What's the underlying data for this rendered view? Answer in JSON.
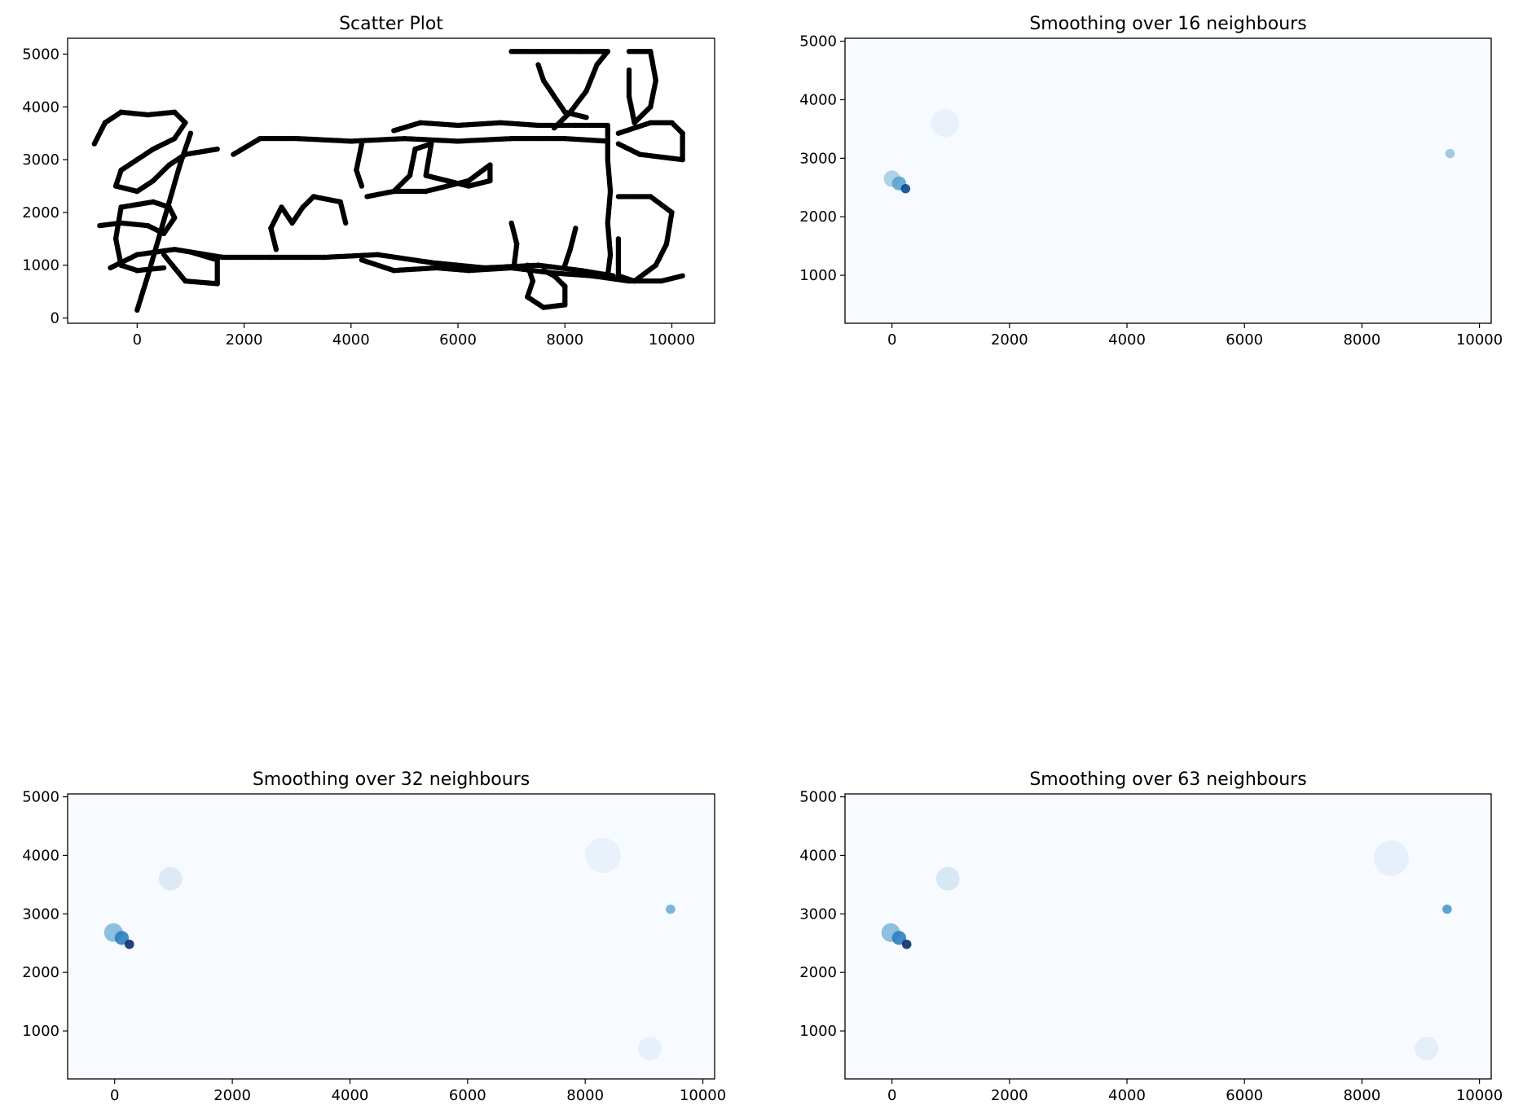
{
  "figure": {
    "layout": "2x2 grid of subplots"
  },
  "chart_data": [
    {
      "type": "scatter",
      "title": "Scatter Plot",
      "xlabel": "",
      "ylabel": "",
      "xlim": [
        -1300,
        10800
      ],
      "ylim": [
        -100,
        5300
      ],
      "xticks": [
        0,
        2000,
        4000,
        6000,
        8000,
        10000
      ],
      "yticks": [
        0,
        1000,
        2000,
        3000,
        4000,
        5000
      ],
      "marker_color": "#000000",
      "grid": false,
      "legend": "none",
      "paths": [
        {
          "name": "lower-corridor",
          "points": [
            [
              -500,
              950
            ],
            [
              0,
              1200
            ],
            [
              700,
              1300
            ],
            [
              1600,
              1150
            ],
            [
              2500,
              1150
            ],
            [
              3500,
              1150
            ],
            [
              4500,
              1200
            ],
            [
              5500,
              1050
            ],
            [
              6500,
              950
            ],
            [
              7500,
              1000
            ],
            [
              8300,
              900
            ],
            [
              8900,
              800
            ]
          ]
        },
        {
          "name": "lower-corridor-2",
          "points": [
            [
              4200,
              1100
            ],
            [
              4800,
              900
            ],
            [
              5600,
              950
            ],
            [
              6200,
              900
            ],
            [
              7000,
              950
            ],
            [
              7800,
              850
            ],
            [
              8500,
              800
            ],
            [
              9200,
              700
            ],
            [
              9800,
              700
            ],
            [
              10200,
              800
            ]
          ]
        },
        {
          "name": "upper-corridor",
          "points": [
            [
              1800,
              3100
            ],
            [
              2300,
              3400
            ],
            [
              3000,
              3400
            ],
            [
              4000,
              3350
            ],
            [
              5000,
              3400
            ],
            [
              6000,
              3350
            ],
            [
              7000,
              3400
            ],
            [
              8000,
              3400
            ],
            [
              8800,
              3350
            ]
          ]
        },
        {
          "name": "upper-loop",
          "points": [
            [
              4800,
              3550
            ],
            [
              5300,
              3700
            ],
            [
              6000,
              3650
            ],
            [
              6800,
              3700
            ],
            [
              7500,
              3650
            ],
            [
              8200,
              3650
            ],
            [
              8800,
              3650
            ]
          ]
        },
        {
          "name": "right-wall",
          "points": [
            [
              8800,
              3600
            ],
            [
              8800,
              3000
            ],
            [
              8850,
              2400
            ],
            [
              8800,
              1800
            ],
            [
              8850,
              1200
            ],
            [
              8800,
              800
            ]
          ]
        },
        {
          "name": "right-loop",
          "points": [
            [
              9000,
              3500
            ],
            [
              9600,
              3700
            ],
            [
              10000,
              3700
            ],
            [
              10200,
              3500
            ],
            [
              10200,
              3000
            ],
            [
              9400,
              3100
            ],
            [
              9000,
              3300
            ]
          ]
        },
        {
          "name": "right-inner",
          "points": [
            [
              9000,
              2300
            ],
            [
              9600,
              2300
            ],
            [
              10000,
              2000
            ],
            [
              9900,
              1400
            ],
            [
              9700,
              1000
            ],
            [
              9300,
              700
            ],
            [
              9000,
              800
            ],
            [
              9000,
              1500
            ]
          ]
        },
        {
          "name": "left-cluster",
          "points": [
            [
              -800,
              3300
            ],
            [
              -600,
              3700
            ],
            [
              -300,
              3900
            ],
            [
              200,
              3850
            ],
            [
              700,
              3900
            ],
            [
              900,
              3700
            ],
            [
              700,
              3400
            ],
            [
              300,
              3200
            ],
            [
              0,
              3000
            ],
            [
              -300,
              2800
            ],
            [
              -400,
              2500
            ],
            [
              0,
              2400
            ],
            [
              300,
              2600
            ],
            [
              600,
              2900
            ],
            [
              900,
              3100
            ],
            [
              1500,
              3200
            ]
          ]
        },
        {
          "name": "left-lower",
          "points": [
            [
              -700,
              1750
            ],
            [
              -300,
              1800
            ],
            [
              200,
              1750
            ],
            [
              500,
              1600
            ],
            [
              700,
              1900
            ],
            [
              600,
              2100
            ],
            [
              300,
              2200
            ],
            [
              -300,
              2100
            ],
            [
              -400,
              1500
            ],
            [
              -300,
              1000
            ],
            [
              0,
              900
            ],
            [
              500,
              950
            ]
          ]
        },
        {
          "name": "diagonal",
          "points": [
            [
              0,
              150
            ],
            [
              200,
              800
            ],
            [
              400,
              1500
            ],
            [
              600,
              2200
            ],
            [
              800,
              2900
            ],
            [
              1000,
              3500
            ]
          ]
        },
        {
          "name": "small-loop",
          "points": [
            [
              500,
              1200
            ],
            [
              900,
              700
            ],
            [
              1500,
              650
            ],
            [
              1500,
              1100
            ],
            [
              1000,
              1250
            ]
          ]
        },
        {
          "name": "mid-stubs",
          "points": [
            [
              2600,
              1300
            ],
            [
              2500,
              1700
            ],
            [
              2700,
              2100
            ],
            [
              2900,
              1800
            ],
            [
              3100,
              2100
            ],
            [
              3300,
              2300
            ],
            [
              3800,
              2200
            ],
            [
              3900,
              1800
            ]
          ]
        },
        {
          "name": "center-vertical-1",
          "points": [
            [
              4200,
              3300
            ],
            [
              4100,
              2800
            ],
            [
              4200,
              2500
            ]
          ]
        },
        {
          "name": "center-box",
          "points": [
            [
              4300,
              2300
            ],
            [
              4800,
              2400
            ],
            [
              5400,
              2400
            ],
            [
              6200,
              2600
            ],
            [
              6600,
              2900
            ],
            [
              6600,
              2600
            ],
            [
              6200,
              2500
            ],
            [
              5800,
              2600
            ],
            [
              5400,
              2700
            ],
            [
              5500,
              3300
            ],
            [
              5200,
              3200
            ],
            [
              5100,
              2700
            ],
            [
              4800,
              2400
            ]
          ]
        },
        {
          "name": "bottom-loop",
          "points": [
            [
              7300,
              1000
            ],
            [
              7400,
              700
            ],
            [
              7300,
              400
            ],
            [
              7600,
              200
            ],
            [
              8000,
              250
            ],
            [
              8000,
              600
            ],
            [
              7800,
              800
            ],
            [
              7600,
              900
            ]
          ]
        },
        {
          "name": "top-right",
          "points": [
            [
              7000,
              5050
            ],
            [
              7600,
              5050
            ],
            [
              8300,
              5050
            ],
            [
              8800,
              5050
            ],
            [
              8600,
              4800
            ],
            [
              8400,
              4300
            ],
            [
              8100,
              3900
            ],
            [
              7800,
              3600
            ]
          ]
        },
        {
          "name": "top-right-2",
          "points": [
            [
              7500,
              4800
            ],
            [
              7600,
              4500
            ],
            [
              7800,
              4200
            ],
            [
              8000,
              3900
            ],
            [
              8400,
              3800
            ]
          ]
        },
        {
          "name": "top-right-3",
          "points": [
            [
              9200,
              5050
            ],
            [
              9600,
              5050
            ],
            [
              9700,
              4500
            ],
            [
              9600,
              4000
            ],
            [
              9300,
              3700
            ],
            [
              9200,
              4200
            ],
            [
              9200,
              4700
            ]
          ]
        },
        {
          "name": "right-stub",
          "points": [
            [
              8200,
              1700
            ],
            [
              8100,
              1300
            ],
            [
              8000,
              1000
            ]
          ]
        },
        {
          "name": "mid-stub-2",
          "points": [
            [
              7000,
              1800
            ],
            [
              7100,
              1400
            ],
            [
              7050,
              1000
            ]
          ]
        }
      ]
    },
    {
      "type": "heatmap",
      "title": "Smoothing over 16 neighbours",
      "xlim": [
        -800,
        10200
      ],
      "ylim": [
        180,
        5050
      ],
      "xticks": [
        0,
        2000,
        4000,
        6000,
        8000,
        10000
      ],
      "yticks": [
        1000,
        2000,
        3000,
        4000,
        5000
      ],
      "colormap": "Blues",
      "background_color": "#f7fbff",
      "hotspots": [
        {
          "x": 0,
          "y": 2650,
          "intensity": 0.35,
          "spread": 70
        },
        {
          "x": 120,
          "y": 2570,
          "intensity": 0.55,
          "spread": 60
        },
        {
          "x": 230,
          "y": 2480,
          "intensity": 0.9,
          "spread": 40
        },
        {
          "x": 9500,
          "y": 3080,
          "intensity": 0.4,
          "spread": 40
        },
        {
          "x": 900,
          "y": 3600,
          "intensity": 0.08,
          "spread": 120
        }
      ]
    },
    {
      "type": "heatmap",
      "title": "Smoothing over 32 neighbours",
      "xlim": [
        -800,
        10200
      ],
      "ylim": [
        180,
        5050
      ],
      "xticks": [
        0,
        2000,
        4000,
        6000,
        8000,
        10000
      ],
      "yticks": [
        1000,
        2000,
        3000,
        4000,
        5000
      ],
      "colormap": "Blues",
      "background_color": "#f7fbff",
      "hotspots": [
        {
          "x": -20,
          "y": 2680,
          "intensity": 0.45,
          "spread": 80
        },
        {
          "x": 120,
          "y": 2590,
          "intensity": 0.7,
          "spread": 60
        },
        {
          "x": 250,
          "y": 2480,
          "intensity": 1.0,
          "spread": 40
        },
        {
          "x": 9450,
          "y": 3080,
          "intensity": 0.5,
          "spread": 40
        },
        {
          "x": 950,
          "y": 3600,
          "intensity": 0.15,
          "spread": 100
        },
        {
          "x": 8300,
          "y": 4000,
          "intensity": 0.08,
          "spread": 150
        },
        {
          "x": 9100,
          "y": 700,
          "intensity": 0.1,
          "spread": 100
        }
      ]
    },
    {
      "type": "heatmap",
      "title": "Smoothing over 63 neighbours",
      "xlim": [
        -800,
        10200
      ],
      "ylim": [
        180,
        5050
      ],
      "xticks": [
        0,
        2000,
        4000,
        6000,
        8000,
        10000
      ],
      "yticks": [
        1000,
        2000,
        3000,
        4000,
        5000
      ],
      "colormap": "Blues",
      "background_color": "#f7fbff",
      "hotspots": [
        {
          "x": -20,
          "y": 2680,
          "intensity": 0.45,
          "spread": 80
        },
        {
          "x": 120,
          "y": 2590,
          "intensity": 0.7,
          "spread": 60
        },
        {
          "x": 250,
          "y": 2480,
          "intensity": 1.0,
          "spread": 40
        },
        {
          "x": 9450,
          "y": 3080,
          "intensity": 0.6,
          "spread": 40
        },
        {
          "x": 950,
          "y": 3600,
          "intensity": 0.18,
          "spread": 100
        },
        {
          "x": 8500,
          "y": 3950,
          "intensity": 0.1,
          "spread": 150
        },
        {
          "x": 9100,
          "y": 700,
          "intensity": 0.12,
          "spread": 100
        }
      ]
    }
  ]
}
